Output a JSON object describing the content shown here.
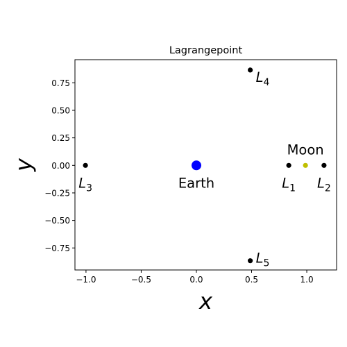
{
  "chart_data": {
    "type": "scatter",
    "title": "Lagrangepoint",
    "xlabel": "x",
    "ylabel": "y",
    "xlim": [
      -1.1,
      1.27
    ],
    "ylim": [
      -0.95,
      0.96
    ],
    "x_ticks": [
      -1.0,
      -0.5,
      0.0,
      0.5,
      1.0
    ],
    "x_tick_labels": [
      "−1.0",
      "−0.5",
      "0.0",
      "0.5",
      "1.0"
    ],
    "y_ticks": [
      -0.75,
      -0.5,
      -0.25,
      0.0,
      0.25,
      0.5,
      0.75
    ],
    "y_tick_labels": [
      "−0.75",
      "−0.50",
      "−0.25",
      "0.00",
      "0.25",
      "0.50",
      "0.75"
    ],
    "grid": false,
    "points": [
      {
        "id": "earth",
        "x": 0.0,
        "y": 0.0,
        "color": "#0000ff",
        "size": "large",
        "label": "Earth",
        "label_position": "below"
      },
      {
        "id": "moon",
        "x": 0.988,
        "y": 0.0,
        "color": "#bfbf00",
        "size": "small",
        "label": "Moon",
        "label_position": "above"
      },
      {
        "id": "l1",
        "x": 0.837,
        "y": 0.0,
        "color": "#000000",
        "size": "small",
        "label": "L",
        "subscript": "1",
        "label_position": "below"
      },
      {
        "id": "l2",
        "x": 1.156,
        "y": 0.0,
        "color": "#000000",
        "size": "small",
        "label": "L",
        "subscript": "2",
        "label_position": "below"
      },
      {
        "id": "l3",
        "x": -1.005,
        "y": 0.0,
        "color": "#000000",
        "size": "small",
        "label": "L",
        "subscript": "3",
        "label_position": "below"
      },
      {
        "id": "l4",
        "x": 0.488,
        "y": 0.866,
        "color": "#000000",
        "size": "small",
        "label": "L",
        "subscript": "4",
        "label_position": "right"
      },
      {
        "id": "l5",
        "x": 0.488,
        "y": -0.866,
        "color": "#000000",
        "size": "small",
        "label": "L",
        "subscript": "5",
        "label_position": "right"
      }
    ]
  }
}
